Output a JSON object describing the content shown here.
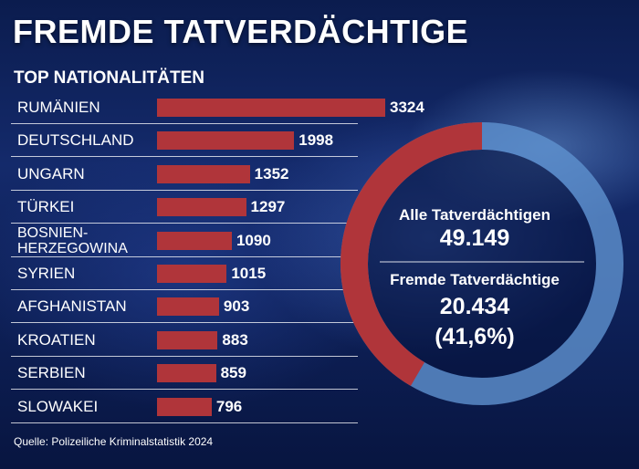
{
  "header": {
    "title": "FREMDE TATVERDÄCHTIGE",
    "subtitle": "TOP NATIONALITÄTEN"
  },
  "chart_data": [
    {
      "type": "bar",
      "orientation": "horizontal",
      "categories": [
        "RUMÄNIEN",
        "DEUTSCHLAND",
        "UNGARN",
        "TÜRKEI",
        "BOSNIEN-\nHERZEGOWINA",
        "SYRIEN",
        "AFGHANISTAN",
        "KROATIEN",
        "SERBIEN",
        "SLOWAKEI"
      ],
      "values": [
        3324,
        1998,
        1352,
        1297,
        1090,
        1015,
        903,
        883,
        859,
        796
      ],
      "title": "TOP NATIONALITÄTEN",
      "xlim": [
        0,
        3324
      ],
      "grid": false
    },
    {
      "type": "pie",
      "donut": true,
      "total_label": "Alle Tatverdächtigen",
      "total_value": "49.149",
      "part_label": "Fremde Tatverdächtige",
      "part_value": "20.434",
      "part_percent": "(41,6%)",
      "total": 49149,
      "part": 20434,
      "share": 0.416
    }
  ],
  "colors": {
    "bar": "#b0353a",
    "donut_part": "#b0353a",
    "donut_rest": "#5f92cf",
    "text": "#ffffff"
  },
  "footer": {
    "source": "Quelle: Polizeiliche Kriminalstatistik 2024"
  }
}
